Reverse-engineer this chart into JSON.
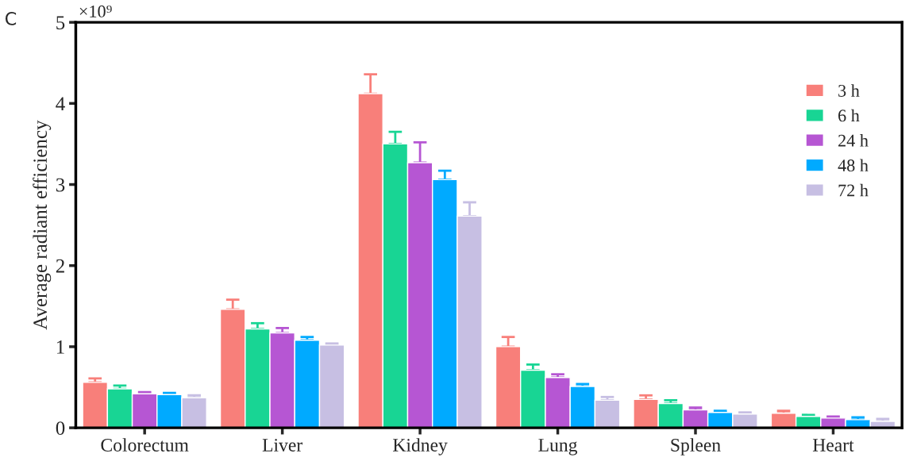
{
  "chart_data": {
    "type": "bar",
    "ylabel": "Average radiant efficiency",
    "annotations": [
      "C",
      "×10⁹"
    ],
    "categories": [
      "Colorectum",
      "Liver",
      "Kidney",
      "Lung",
      "Spleen",
      "Heart"
    ],
    "series": [
      {
        "name": "3 h",
        "color": "#f87f7a",
        "values": [
          0.56,
          1.46,
          4.12,
          1.0,
          0.35,
          0.18
        ],
        "errors": [
          [
            0.56,
            0.61
          ],
          [
            1.46,
            1.58
          ],
          [
            4.12,
            4.36
          ],
          [
            1.0,
            1.12
          ],
          [
            0.35,
            0.4
          ],
          [
            0.18,
            0.21
          ]
        ]
      },
      {
        "name": "6 h",
        "color": "#18d594",
        "values": [
          0.48,
          1.22,
          3.5,
          0.71,
          0.3,
          0.14
        ],
        "errors": [
          [
            0.48,
            0.52
          ],
          [
            1.22,
            1.29
          ],
          [
            3.5,
            3.65
          ],
          [
            0.71,
            0.78
          ],
          [
            0.3,
            0.34
          ],
          [
            0.14,
            0.16
          ]
        ]
      },
      {
        "name": "24 h",
        "color": "#b656d3",
        "values": [
          0.42,
          1.17,
          3.27,
          0.62,
          0.22,
          0.12
        ],
        "errors": [
          [
            0.42,
            0.44
          ],
          [
            1.17,
            1.23
          ],
          [
            3.27,
            3.52
          ],
          [
            0.62,
            0.66
          ],
          [
            0.22,
            0.25
          ],
          [
            0.12,
            0.14
          ]
        ]
      },
      {
        "name": "48 h",
        "color": "#00aaff",
        "values": [
          0.41,
          1.08,
          3.06,
          0.51,
          0.19,
          0.1
        ],
        "errors": [
          [
            0.41,
            0.43
          ],
          [
            1.08,
            1.12
          ],
          [
            3.06,
            3.17
          ],
          [
            0.51,
            0.54
          ],
          [
            0.19,
            0.21
          ],
          [
            0.1,
            0.13
          ]
        ]
      },
      {
        "name": "72 h",
        "color": "#c7bfe3",
        "values": [
          0.37,
          1.02,
          2.61,
          0.34,
          0.17,
          0.08
        ],
        "errors": [
          [
            0.37,
            0.4
          ],
          [
            1.02,
            1.04
          ],
          [
            2.61,
            2.78
          ],
          [
            0.34,
            0.38
          ],
          [
            0.17,
            0.19
          ],
          [
            0.08,
            0.11
          ]
        ]
      }
    ],
    "ylim": [
      0,
      5
    ],
    "yticks": [
      0,
      1,
      2,
      3,
      4,
      5
    ],
    "grid": false,
    "legend": "top right"
  }
}
